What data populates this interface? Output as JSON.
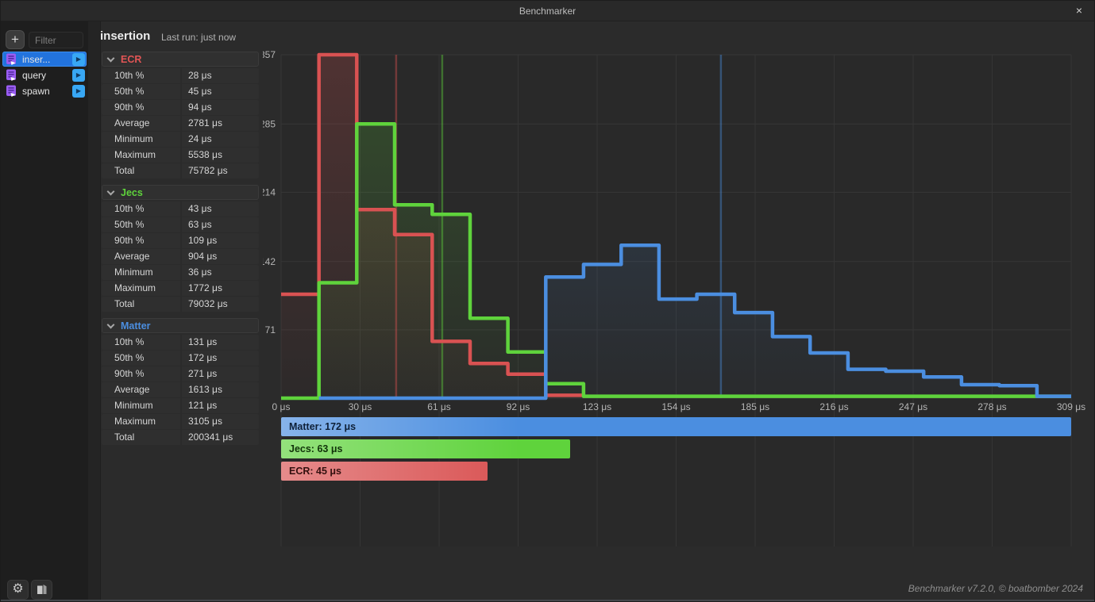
{
  "window": {
    "title": "Benchmarker"
  },
  "icons": {
    "close": "×",
    "add": "+",
    "play": "▶",
    "gear": "⚙"
  },
  "sidebar": {
    "filter_placeholder": "Filter",
    "items": [
      {
        "label": "inser...",
        "selected": true
      },
      {
        "label": "query",
        "selected": false
      },
      {
        "label": "spawn",
        "selected": false
      }
    ]
  },
  "header": {
    "title": "insertion",
    "last_run": "Last run: just now"
  },
  "stats_sections": [
    {
      "name": "ECR",
      "color": "#e25555",
      "rows": [
        [
          "10th %",
          "28 μs"
        ],
        [
          "50th %",
          "45 μs"
        ],
        [
          "90th %",
          "94 μs"
        ],
        [
          "Average",
          "2781 μs"
        ],
        [
          "Minimum",
          "24 μs"
        ],
        [
          "Maximum",
          "5538 μs"
        ],
        [
          "Total",
          "75782 μs"
        ]
      ]
    },
    {
      "name": "Jecs",
      "color": "#5fd33c",
      "rows": [
        [
          "10th %",
          "43 μs"
        ],
        [
          "50th %",
          "63 μs"
        ],
        [
          "90th %",
          "109 μs"
        ],
        [
          "Average",
          "904 μs"
        ],
        [
          "Minimum",
          "36 μs"
        ],
        [
          "Maximum",
          "1772 μs"
        ],
        [
          "Total",
          "79032 μs"
        ]
      ]
    },
    {
      "name": "Matter",
      "color": "#4b8ee0",
      "rows": [
        [
          "10th %",
          "131 μs"
        ],
        [
          "50th %",
          "172 μs"
        ],
        [
          "90th %",
          "271 μs"
        ],
        [
          "Average",
          "1613 μs"
        ],
        [
          "Minimum",
          "121 μs"
        ],
        [
          "Maximum",
          "3105 μs"
        ],
        [
          "Total",
          "200341 μs"
        ]
      ]
    }
  ],
  "chart_data": {
    "type": "step-histogram",
    "x_unit": "μs",
    "xlim": [
      0,
      309
    ],
    "ylim": [
      0,
      357
    ],
    "grid": true,
    "x_ticks": [
      {
        "v": 0,
        "label": "0 μs"
      },
      {
        "v": 30.9,
        "label": "30 μs"
      },
      {
        "v": 61.8,
        "label": "61 μs"
      },
      {
        "v": 92.7,
        "label": "92 μs"
      },
      {
        "v": 123.6,
        "label": "123 μs"
      },
      {
        "v": 154.5,
        "label": "154 μs"
      },
      {
        "v": 185.4,
        "label": "185 μs"
      },
      {
        "v": 216.3,
        "label": "216 μs"
      },
      {
        "v": 247.2,
        "label": "247 μs"
      },
      {
        "v": 278.1,
        "label": "278 μs"
      },
      {
        "v": 309,
        "label": "309 μs"
      }
    ],
    "y_ticks": [
      {
        "v": 0,
        "label": ""
      },
      {
        "v": 71,
        "label": "71"
      },
      {
        "v": 142,
        "label": "142"
      },
      {
        "v": 214,
        "label": "214"
      },
      {
        "v": 285,
        "label": "285"
      },
      {
        "v": 357,
        "label": "357"
      }
    ],
    "bin_edges": [
      0,
      14.8,
      29.6,
      44.4,
      59.1,
      73.9,
      88.7,
      103.5,
      118.3,
      133.0,
      147.8,
      162.6,
      177.4,
      192.2,
      206.9,
      221.7,
      236.5,
      251.3,
      266.1,
      280.9,
      295.6,
      309
    ],
    "series": [
      {
        "name": "ECR",
        "color": "#D95252",
        "median_us": 45,
        "counts": [
          108,
          357,
          196,
          170,
          59,
          36,
          25,
          3,
          null,
          null,
          null,
          null,
          null,
          null,
          null,
          null,
          null,
          null,
          null,
          null,
          null
        ]
      },
      {
        "name": "Jecs",
        "color": "#5FD33C",
        "median_us": 63,
        "counts": [
          0,
          120,
          285,
          201,
          191,
          83,
          48,
          15,
          2,
          2,
          2,
          2,
          2,
          2,
          2,
          2,
          2,
          2,
          2,
          2,
          2
        ]
      },
      {
        "name": "Matter",
        "color": "#4B8EE0",
        "median_us": 172,
        "counts": [
          null,
          0,
          0,
          0,
          0,
          0,
          0,
          126,
          139,
          159,
          103,
          108,
          89,
          64,
          47,
          30,
          28,
          22,
          14,
          13,
          2
        ]
      }
    ]
  },
  "legend": [
    {
      "label": "Matter: 172 μs",
      "value_us": 172,
      "color": "#4B8EE0",
      "text_color": "#0E2038"
    },
    {
      "label": "Jecs: 63 μs",
      "value_us": 63,
      "color": "#5FD33C",
      "text_color": "#11330A"
    },
    {
      "label": "ECR: 45 μs",
      "value_us": 45,
      "color": "#D95252",
      "text_color": "#33100F"
    }
  ],
  "footer": {
    "credit": "Benchmarker v7.2.0, © boatbomber 2024"
  }
}
